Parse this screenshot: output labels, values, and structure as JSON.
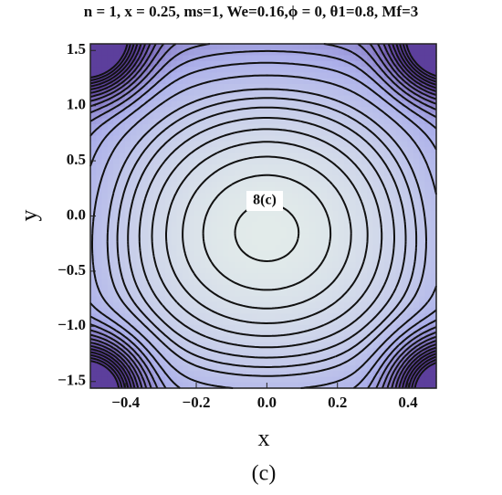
{
  "chart_data": {
    "type": "contour",
    "title": "n = 1, x = 0.25, ms=1, We=0.16,ϕ = 0, θ1=0.8, Mf=3",
    "x_label": "x",
    "y_label": "y",
    "annotation": "8(c)",
    "caption": "(c)",
    "xlim": [
      -0.5,
      0.48
    ],
    "ylim": [
      -1.56,
      1.56
    ],
    "xticks": [
      {
        "value": -0.4,
        "label": "−0.4"
      },
      {
        "value": -0.2,
        "label": "−0.2"
      },
      {
        "value": 0,
        "label": "0.0"
      },
      {
        "value": 0.2,
        "label": "0.2"
      },
      {
        "value": 0.4,
        "label": "0.4"
      }
    ],
    "yticks": [
      {
        "value": -1.5,
        "label": "−1.5"
      },
      {
        "value": -1,
        "label": "−1.0"
      },
      {
        "value": -0.5,
        "label": "−0.5"
      },
      {
        "value": 0,
        "label": "0.0"
      },
      {
        "value": 0.5,
        "label": "0.5"
      },
      {
        "value": 1,
        "label": "1.0"
      },
      {
        "value": 1.5,
        "label": "1.5"
      }
    ]
  }
}
